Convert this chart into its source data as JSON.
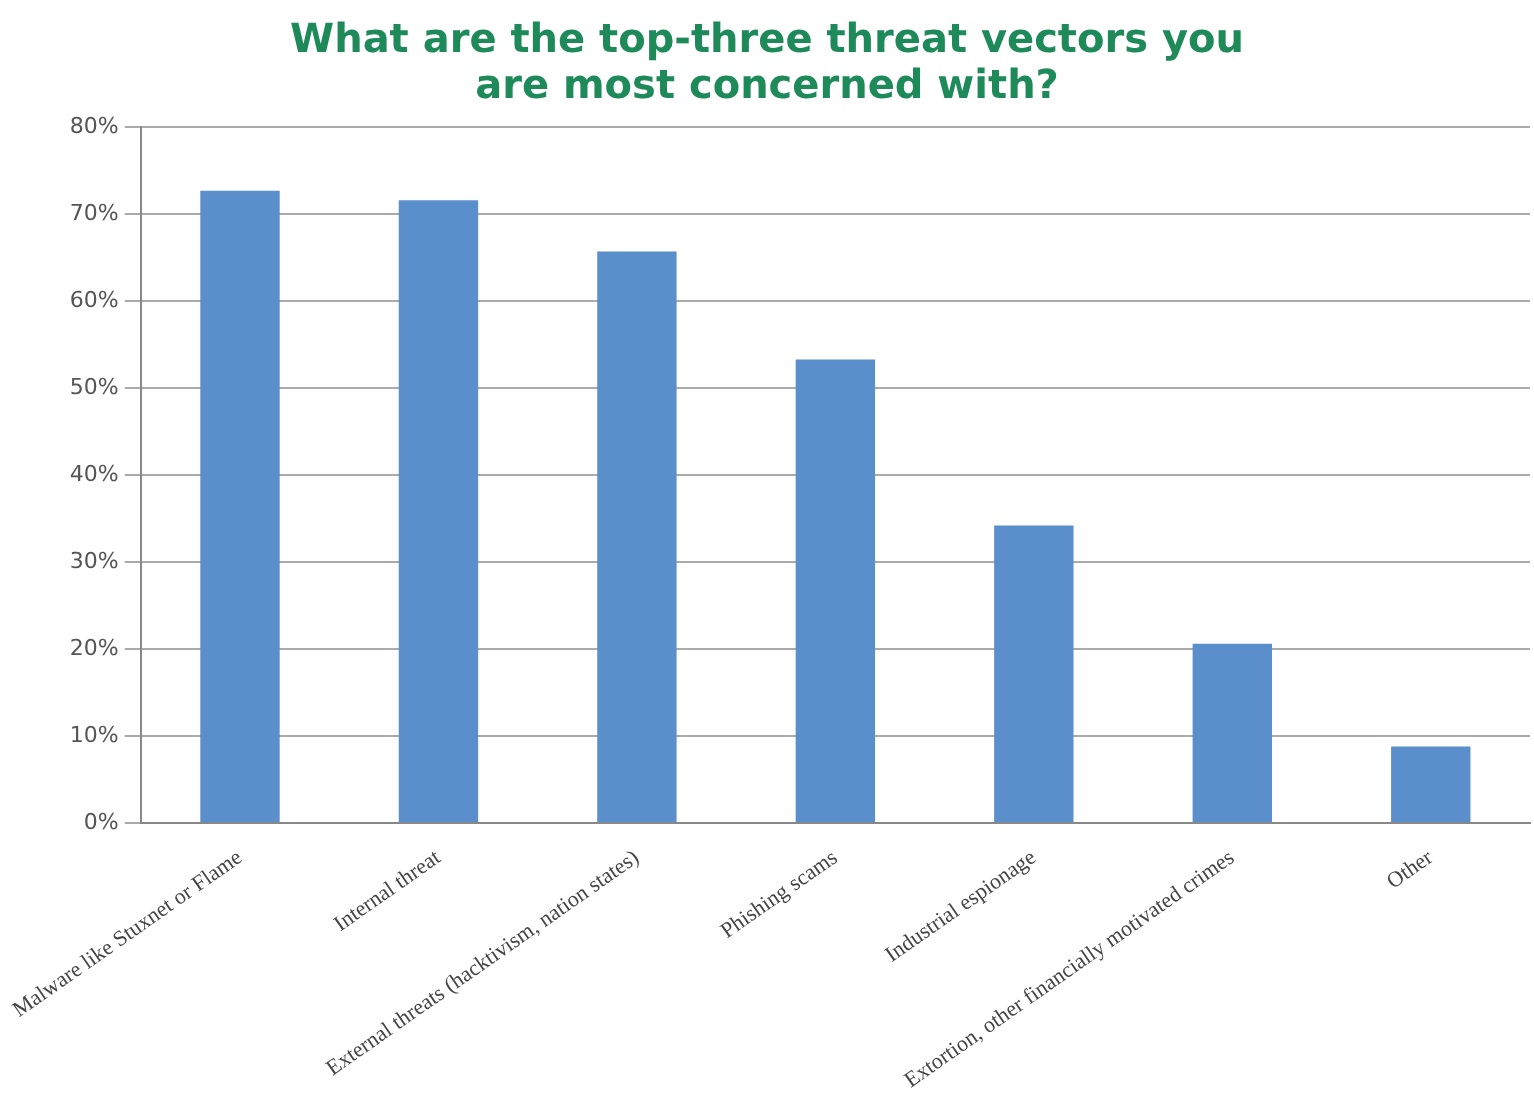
{
  "chart_data": {
    "type": "bar",
    "title": "What are the top-three threat vectors you are most concerned with?",
    "categories": [
      "Malware like Stuxnet or Flame",
      "Internal threat",
      "External threats (hacktivism, nation states)",
      "Phishing scams",
      "Industrial espionage",
      "Extortion, other financially motivated crimes",
      "Other"
    ],
    "values": [
      72.7,
      71.6,
      65.7,
      53.3,
      34.2,
      20.6,
      8.8
    ],
    "color": "#5b8fcc",
    "ylim": [
      0,
      80
    ],
    "yticks": [
      {
        "value": 0,
        "label": "0%"
      },
      {
        "value": 10,
        "label": "10%"
      },
      {
        "value": 20,
        "label": "20%"
      },
      {
        "value": 30,
        "label": "30%"
      },
      {
        "value": 40,
        "label": "40%"
      },
      {
        "value": 50,
        "label": "50%"
      },
      {
        "value": 60,
        "label": "60%"
      },
      {
        "value": 70,
        "label": "70%"
      },
      {
        "value": 80,
        "label": "80%"
      }
    ],
    "grid": "y"
  }
}
